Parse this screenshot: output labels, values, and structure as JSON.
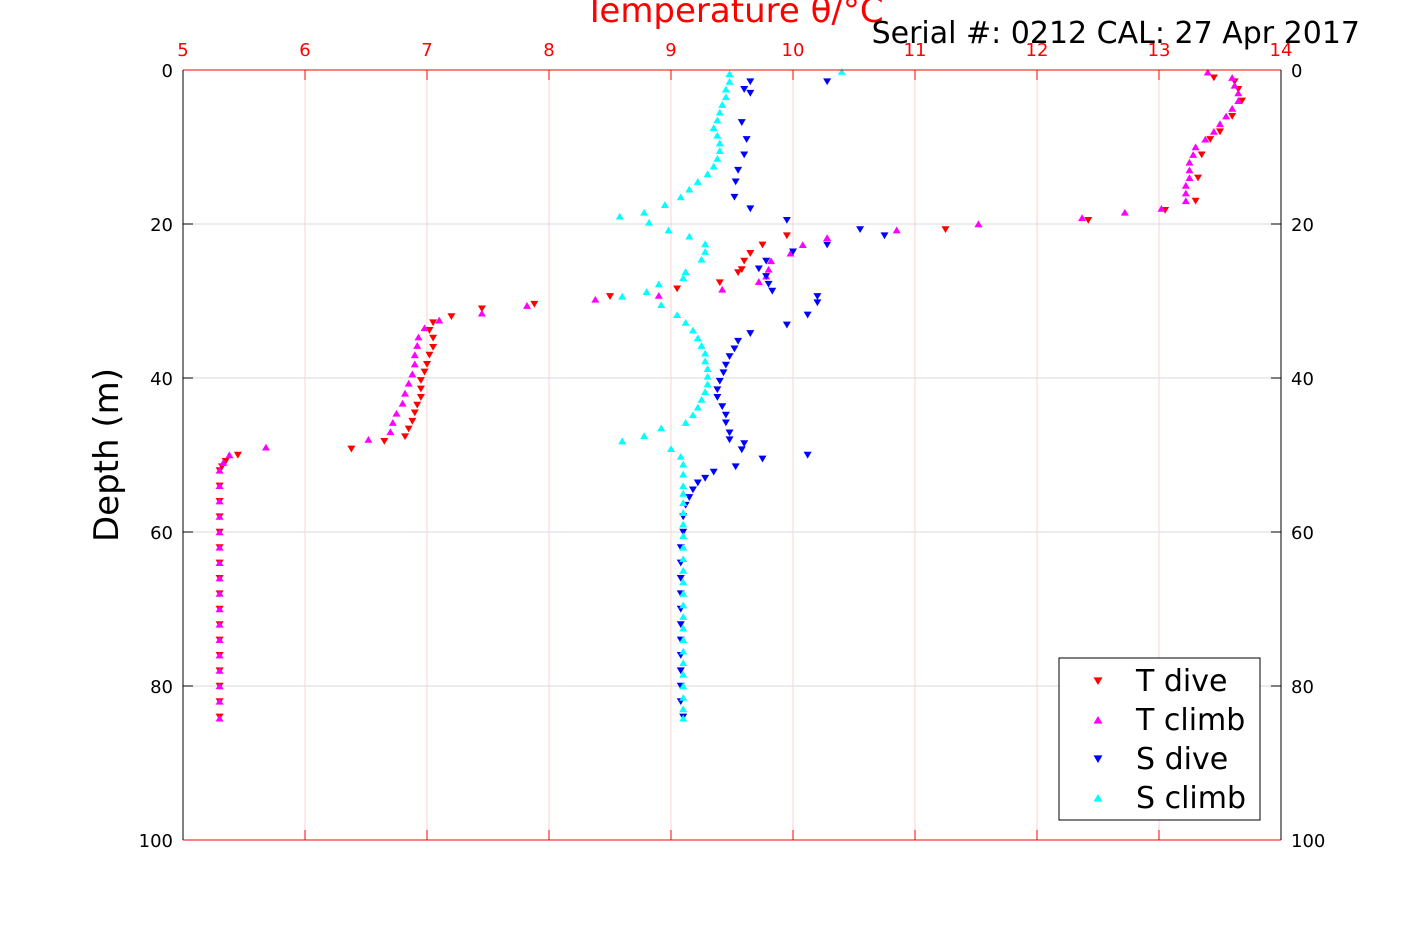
{
  "chart_data": {
    "type": "scatter",
    "title": "Serial #: 0212  CAL: 27 Apr 2017",
    "xlabel": "Temperature θ/°C",
    "ylabel": "Depth (m)",
    "xlim": [
      5,
      14
    ],
    "ylim": [
      0,
      100
    ],
    "y_reversed": true,
    "grid": true,
    "legend_position": "bottom-right",
    "x_ticks": [
      "5",
      "6",
      "7",
      "8",
      "9",
      "10",
      "11",
      "12",
      "13",
      "14"
    ],
    "y_ticks": [
      "0",
      "20",
      "40",
      "60",
      "80",
      "100"
    ],
    "colors": {
      "axis_top": "#ff0000",
      "t_dive": "#ff0000",
      "t_climb": "#ff00ff",
      "s_dive": "#0000ff",
      "s_climb": "#00ffff"
    },
    "series": [
      {
        "name": "T dive",
        "marker": "triangle-down",
        "color": "#ff0000",
        "points": [
          [
            13.45,
            1
          ],
          [
            13.62,
            1.5
          ],
          [
            13.65,
            2.5
          ],
          [
            13.68,
            4
          ],
          [
            13.6,
            6
          ],
          [
            13.5,
            8
          ],
          [
            13.42,
            9
          ],
          [
            13.35,
            11
          ],
          [
            13.32,
            14
          ],
          [
            13.3,
            17
          ],
          [
            13.05,
            18.2
          ],
          [
            12.42,
            19.5
          ],
          [
            11.25,
            20.7
          ],
          [
            9.95,
            21.5
          ],
          [
            9.75,
            22.7
          ],
          [
            9.65,
            23.8
          ],
          [
            9.6,
            24.8
          ],
          [
            9.58,
            25.9
          ],
          [
            9.55,
            26.3
          ],
          [
            9.4,
            27.6
          ],
          [
            9.05,
            28.4
          ],
          [
            8.5,
            29.4
          ],
          [
            7.88,
            30.4
          ],
          [
            7.45,
            31
          ],
          [
            7.2,
            32
          ],
          [
            7.05,
            32.8
          ],
          [
            7.02,
            33.8
          ],
          [
            7.05,
            34.8
          ],
          [
            7.05,
            36
          ],
          [
            7.02,
            37
          ],
          [
            7.0,
            38.2
          ],
          [
            6.98,
            39.2
          ],
          [
            6.95,
            40.3
          ],
          [
            6.95,
            41.4
          ],
          [
            6.95,
            42.5
          ],
          [
            6.92,
            43.5
          ],
          [
            6.9,
            44.5
          ],
          [
            6.88,
            45.6
          ],
          [
            6.85,
            46.6
          ],
          [
            6.82,
            47.6
          ],
          [
            6.65,
            48.2
          ],
          [
            6.38,
            49.2
          ],
          [
            5.45,
            50
          ],
          [
            5.35,
            50.8
          ],
          [
            5.32,
            51.5
          ],
          [
            5.3,
            52
          ],
          [
            5.3,
            54
          ],
          [
            5.3,
            56
          ],
          [
            5.3,
            58
          ],
          [
            5.3,
            60
          ],
          [
            5.3,
            62
          ],
          [
            5.3,
            64
          ],
          [
            5.3,
            66
          ],
          [
            5.3,
            68
          ],
          [
            5.3,
            70
          ],
          [
            5.3,
            72
          ],
          [
            5.3,
            74
          ],
          [
            5.3,
            76
          ],
          [
            5.3,
            78
          ],
          [
            5.3,
            80
          ],
          [
            5.3,
            82
          ],
          [
            5.3,
            84
          ]
        ]
      },
      {
        "name": "T climb",
        "marker": "triangle-up",
        "color": "#ff00ff",
        "points": [
          [
            13.4,
            0.3
          ],
          [
            13.6,
            1
          ],
          [
            13.62,
            2
          ],
          [
            13.65,
            3
          ],
          [
            13.65,
            4
          ],
          [
            13.6,
            5
          ],
          [
            13.55,
            6
          ],
          [
            13.5,
            7
          ],
          [
            13.45,
            8
          ],
          [
            13.38,
            9
          ],
          [
            13.3,
            10
          ],
          [
            13.28,
            11
          ],
          [
            13.25,
            12
          ],
          [
            13.25,
            13
          ],
          [
            13.25,
            14
          ],
          [
            13.22,
            15
          ],
          [
            13.22,
            16
          ],
          [
            13.22,
            17
          ],
          [
            13.02,
            18
          ],
          [
            12.72,
            18.5
          ],
          [
            12.37,
            19.2
          ],
          [
            11.52,
            20
          ],
          [
            10.85,
            20.8
          ],
          [
            10.28,
            21.8
          ],
          [
            10.08,
            22.7
          ],
          [
            9.98,
            23.8
          ],
          [
            9.82,
            24.8
          ],
          [
            9.8,
            25.9
          ],
          [
            9.78,
            26.8
          ],
          [
            9.72,
            27.5
          ],
          [
            9.42,
            28.5
          ],
          [
            8.9,
            29.3
          ],
          [
            8.38,
            29.8
          ],
          [
            7.82,
            30.6
          ],
          [
            7.45,
            31.6
          ],
          [
            7.1,
            32.5
          ],
          [
            6.98,
            33.5
          ],
          [
            6.93,
            34.7
          ],
          [
            6.92,
            35.8
          ],
          [
            6.9,
            37
          ],
          [
            6.9,
            38.2
          ],
          [
            6.88,
            39.5
          ],
          [
            6.85,
            40.7
          ],
          [
            6.82,
            42
          ],
          [
            6.8,
            43.3
          ],
          [
            6.75,
            44.6
          ],
          [
            6.72,
            45.8
          ],
          [
            6.7,
            47
          ],
          [
            6.52,
            48
          ],
          [
            5.68,
            49
          ],
          [
            5.38,
            50
          ],
          [
            5.33,
            51
          ],
          [
            5.3,
            52
          ],
          [
            5.3,
            54
          ],
          [
            5.3,
            56
          ],
          [
            5.3,
            58
          ],
          [
            5.3,
            60
          ],
          [
            5.3,
            62
          ],
          [
            5.3,
            64
          ],
          [
            5.3,
            66
          ],
          [
            5.3,
            68
          ],
          [
            5.3,
            70
          ],
          [
            5.3,
            72
          ],
          [
            5.3,
            74
          ],
          [
            5.3,
            76
          ],
          [
            5.3,
            78
          ],
          [
            5.3,
            80
          ],
          [
            5.3,
            82
          ],
          [
            5.3,
            84.2
          ]
        ]
      },
      {
        "name": "S dive",
        "marker": "triangle-down",
        "color": "#0000ff",
        "points": [
          [
            10.28,
            1.5
          ],
          [
            9.65,
            1.5
          ],
          [
            9.6,
            2.5
          ],
          [
            9.65,
            3
          ],
          [
            9.58,
            6.8
          ],
          [
            9.62,
            9
          ],
          [
            9.6,
            11
          ],
          [
            9.55,
            13
          ],
          [
            9.53,
            14.5
          ],
          [
            9.52,
            16.5
          ],
          [
            9.65,
            18
          ],
          [
            9.95,
            19.5
          ],
          [
            10.55,
            20.7
          ],
          [
            10.75,
            21.5
          ],
          [
            10.28,
            22.7
          ],
          [
            10.0,
            23.6
          ],
          [
            9.78,
            24.8
          ],
          [
            9.72,
            25.8
          ],
          [
            9.78,
            26.8
          ],
          [
            9.8,
            27.8
          ],
          [
            9.83,
            28.7
          ],
          [
            10.2,
            29.4
          ],
          [
            10.2,
            30.2
          ],
          [
            10.12,
            31.8
          ],
          [
            9.95,
            33.1
          ],
          [
            9.65,
            34.2
          ],
          [
            9.55,
            35.2
          ],
          [
            9.52,
            36.2
          ],
          [
            9.48,
            37.2
          ],
          [
            9.45,
            38.3
          ],
          [
            9.43,
            39.3
          ],
          [
            9.4,
            40.4
          ],
          [
            9.38,
            41.5
          ],
          [
            9.38,
            42.5
          ],
          [
            9.42,
            43.7
          ],
          [
            9.45,
            44.8
          ],
          [
            9.45,
            45.8
          ],
          [
            9.48,
            47.1
          ],
          [
            9.48,
            48
          ],
          [
            9.6,
            48.5
          ],
          [
            9.58,
            49.3
          ],
          [
            10.12,
            50
          ],
          [
            9.75,
            50.5
          ],
          [
            9.53,
            51.5
          ],
          [
            9.35,
            52.2
          ],
          [
            9.28,
            53
          ],
          [
            9.22,
            53.6
          ],
          [
            9.18,
            54.5
          ],
          [
            9.15,
            55.5
          ],
          [
            9.12,
            56.5
          ],
          [
            9.1,
            58
          ],
          [
            9.1,
            60
          ],
          [
            9.08,
            62
          ],
          [
            9.08,
            64
          ],
          [
            9.08,
            66
          ],
          [
            9.08,
            68
          ],
          [
            9.08,
            70
          ],
          [
            9.08,
            72
          ],
          [
            9.08,
            74
          ],
          [
            9.08,
            76
          ],
          [
            9.08,
            78
          ],
          [
            9.08,
            80
          ],
          [
            9.08,
            82
          ],
          [
            9.1,
            84
          ]
        ]
      },
      {
        "name": "S climb",
        "marker": "triangle-up",
        "color": "#00ffff",
        "points": [
          [
            10.4,
            0.2
          ],
          [
            9.48,
            0.5
          ],
          [
            9.48,
            1.5
          ],
          [
            9.45,
            2.5
          ],
          [
            9.45,
            3.5
          ],
          [
            9.42,
            4.5
          ],
          [
            9.4,
            5.5
          ],
          [
            9.38,
            6.5
          ],
          [
            9.35,
            7.5
          ],
          [
            9.38,
            8.5
          ],
          [
            9.4,
            9.5
          ],
          [
            9.4,
            10.5
          ],
          [
            9.38,
            11.5
          ],
          [
            9.35,
            12.5
          ],
          [
            9.3,
            13.5
          ],
          [
            9.22,
            14.5
          ],
          [
            9.15,
            15.5
          ],
          [
            9.08,
            16.5
          ],
          [
            8.95,
            17.5
          ],
          [
            8.78,
            18.5
          ],
          [
            8.58,
            19
          ],
          [
            8.82,
            19.8
          ],
          [
            8.98,
            20.8
          ],
          [
            9.15,
            21.6
          ],
          [
            9.28,
            22.6
          ],
          [
            9.28,
            23.6
          ],
          [
            9.25,
            24.6
          ],
          [
            9.12,
            26.2
          ],
          [
            9.1,
            27
          ],
          [
            8.9,
            27.8
          ],
          [
            8.8,
            28.8
          ],
          [
            8.6,
            29.4
          ],
          [
            8.92,
            30.5
          ],
          [
            9.05,
            31.8
          ],
          [
            9.12,
            32.8
          ],
          [
            9.18,
            33.8
          ],
          [
            9.22,
            34.8
          ],
          [
            9.25,
            35.8
          ],
          [
            9.28,
            36.8
          ],
          [
            9.28,
            37.8
          ],
          [
            9.3,
            38.8
          ],
          [
            9.3,
            39.8
          ],
          [
            9.3,
            40.8
          ],
          [
            9.28,
            41.8
          ],
          [
            9.25,
            42.8
          ],
          [
            9.22,
            43.8
          ],
          [
            9.18,
            44.8
          ],
          [
            9.12,
            45.8
          ],
          [
            8.92,
            46.5
          ],
          [
            8.78,
            47.5
          ],
          [
            8.6,
            48.2
          ],
          [
            9.0,
            49.2
          ],
          [
            9.08,
            50.2
          ],
          [
            9.1,
            51.2
          ],
          [
            9.1,
            52.5
          ],
          [
            9.1,
            54
          ],
          [
            9.1,
            55
          ],
          [
            9.1,
            56.2
          ],
          [
            9.1,
            57.5
          ],
          [
            9.1,
            59
          ],
          [
            9.1,
            60.5
          ],
          [
            9.1,
            62
          ],
          [
            9.1,
            63.5
          ],
          [
            9.1,
            65
          ],
          [
            9.1,
            66.5
          ],
          [
            9.1,
            68
          ],
          [
            9.1,
            69.5
          ],
          [
            9.1,
            71
          ],
          [
            9.1,
            72.5
          ],
          [
            9.1,
            74
          ],
          [
            9.1,
            75.5
          ],
          [
            9.1,
            77
          ],
          [
            9.1,
            78.5
          ],
          [
            9.1,
            80
          ],
          [
            9.1,
            81.5
          ],
          [
            9.1,
            83
          ],
          [
            9.1,
            84.2
          ]
        ]
      }
    ]
  }
}
